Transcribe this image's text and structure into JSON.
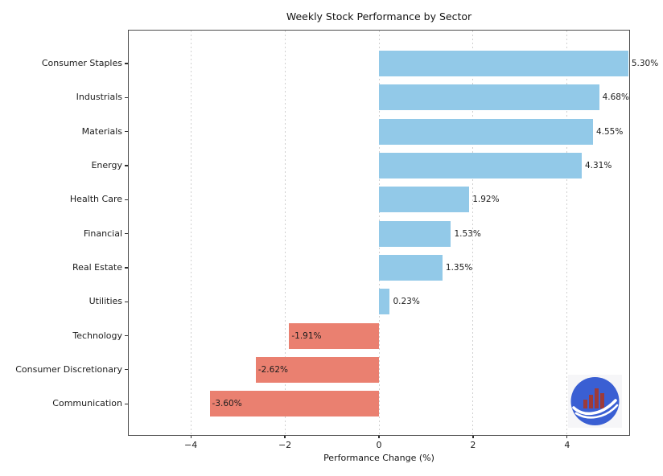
{
  "chart_data": {
    "type": "bar",
    "orientation": "horizontal",
    "title": "Weekly Stock Performance by Sector",
    "xlabel": "Performance Change (%)",
    "categories": [
      "Consumer Staples",
      "Industrials",
      "Materials",
      "Energy",
      "Health Care",
      "Financial",
      "Real Estate",
      "Utilities",
      "Technology",
      "Consumer Discretionary",
      "Communication"
    ],
    "values": [
      5.3,
      4.68,
      4.55,
      4.31,
      1.92,
      1.53,
      1.35,
      0.23,
      -1.91,
      -2.62,
      -3.6
    ],
    "value_labels": [
      "5.30%",
      "4.68%",
      "4.55%",
      "4.31%",
      "1.92%",
      "1.53%",
      "1.35%",
      "0.23%",
      "-1.91%",
      "-2.62%",
      "-3.60%"
    ],
    "xticks": [
      -4,
      -2,
      0,
      2,
      4
    ],
    "xtick_labels": [
      "−4",
      "−2",
      "0",
      "2",
      "4"
    ],
    "xlim": [
      -5.32,
      5.32
    ],
    "grid": "vertical-dotted",
    "legend": "none",
    "positive_color": "#92C9E8",
    "negative_color": "#EA8070"
  },
  "logo": {
    "patch_color": "#f6f6f8",
    "circle_color": "#3A5FD3",
    "bars_color": "#9E3A38",
    "swoosh_color": "#ffffff"
  }
}
